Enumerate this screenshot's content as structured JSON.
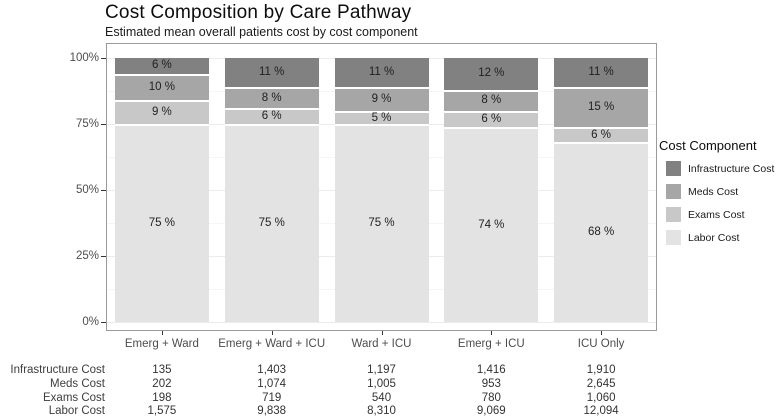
{
  "header": {
    "title": "Cost Composition by Care Pathway",
    "subtitle": "Estimated mean overall patients cost by cost component"
  },
  "chart_data": {
    "type": "bar",
    "variant": "stacked-percent",
    "title": "Cost Composition by Care Pathway",
    "subtitle": "Estimated mean overall patients cost by cost component",
    "categories": [
      "Emerg + Ward",
      "Emerg + Ward + ICU",
      "Ward + ICU",
      "Emerg + ICU",
      "ICU Only"
    ],
    "series": [
      {
        "name": "Infrastructure Cost",
        "color": "#818181",
        "percents": [
          6,
          11,
          11,
          12,
          11
        ]
      },
      {
        "name": "Meds Cost",
        "color": "#a6a6a6",
        "percents": [
          10,
          8,
          9,
          8,
          15
        ]
      },
      {
        "name": "Exams Cost",
        "color": "#c8c8c8",
        "percents": [
          9,
          6,
          5,
          6,
          6
        ]
      },
      {
        "name": "Labor Cost",
        "color": "#e3e3e3",
        "percents": [
          75,
          75,
          75,
          74,
          68
        ]
      }
    ],
    "segment_label_suffix": " %",
    "y_axis": {
      "ticks": [
        0,
        25,
        50,
        75,
        100
      ],
      "tick_labels": [
        "0%",
        "25%",
        "50%",
        "75%",
        "100%"
      ],
      "range": [
        0,
        100
      ]
    },
    "minor_gridlines": [
      12.5,
      37.5,
      62.5,
      87.5
    ],
    "legend": {
      "title": "Cost Component",
      "position": "right",
      "items": [
        "Infrastructure Cost",
        "Meds Cost",
        "Exams Cost",
        "Labor Cost"
      ]
    },
    "grid": true
  },
  "table": {
    "rows": [
      {
        "label": "Infrastructure Cost",
        "values": [
          "135",
          "1,403",
          "1,197",
          "1,416",
          "1,910"
        ]
      },
      {
        "label": "Meds Cost",
        "values": [
          "202",
          "1,074",
          "1,005",
          "953",
          "2,645"
        ]
      },
      {
        "label": "Exams Cost",
        "values": [
          "198",
          "719",
          "540",
          "780",
          "1,060"
        ]
      },
      {
        "label": "Labor Cost",
        "values": [
          "1,575",
          "9,838",
          "8,310",
          "9,069",
          "12,094"
        ]
      }
    ]
  }
}
